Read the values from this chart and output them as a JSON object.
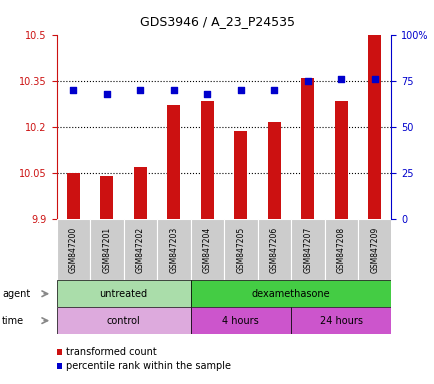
{
  "title": "GDS3946 / A_23_P24535",
  "samples": [
    "GSM847200",
    "GSM847201",
    "GSM847202",
    "GSM847203",
    "GSM847204",
    "GSM847205",
    "GSM847206",
    "GSM847207",
    "GSM847208",
    "GSM847209"
  ],
  "transformed_count": [
    10.05,
    10.04,
    10.07,
    10.27,
    10.285,
    10.185,
    10.215,
    10.36,
    10.285,
    10.5
  ],
  "percentile_rank": [
    70,
    68,
    70,
    70,
    68,
    70,
    70,
    75,
    76,
    76
  ],
  "ylim_left": [
    9.9,
    10.5
  ],
  "ylim_right": [
    0,
    100
  ],
  "yticks_left": [
    9.9,
    10.05,
    10.2,
    10.35,
    10.5
  ],
  "yticks_right": [
    0,
    25,
    50,
    75,
    100
  ],
  "ytick_labels_left": [
    "9.9",
    "10.05",
    "10.2",
    "10.35",
    "10.5"
  ],
  "ytick_labels_right": [
    "0",
    "25",
    "50",
    "75",
    "100%"
  ],
  "hlines": [
    10.05,
    10.2,
    10.35
  ],
  "bar_color": "#cc1111",
  "dot_color": "#0000cc",
  "bar_bottom": 9.9,
  "agent_groups": [
    {
      "label": "untreated",
      "start": 0,
      "end": 4
    },
    {
      "label": "dexamethasone",
      "start": 4,
      "end": 10
    }
  ],
  "time_groups": [
    {
      "label": "control",
      "start": 0,
      "end": 4
    },
    {
      "label": "4 hours",
      "start": 4,
      "end": 7
    },
    {
      "label": "24 hours",
      "start": 7,
      "end": 10
    }
  ],
  "legend_items": [
    {
      "color": "#cc1111",
      "label": "transformed count"
    },
    {
      "color": "#0000cc",
      "label": "percentile rank within the sample"
    }
  ],
  "left_axis_color": "#cc1111",
  "right_axis_color": "#0000cc",
  "agent_untreated_color": "#aaddaa",
  "agent_dexa_color": "#44cc44",
  "time_control_color": "#ddaadd",
  "time_hours_color": "#cc55cc",
  "sample_box_color": "#cccccc",
  "bar_width": 0.4
}
